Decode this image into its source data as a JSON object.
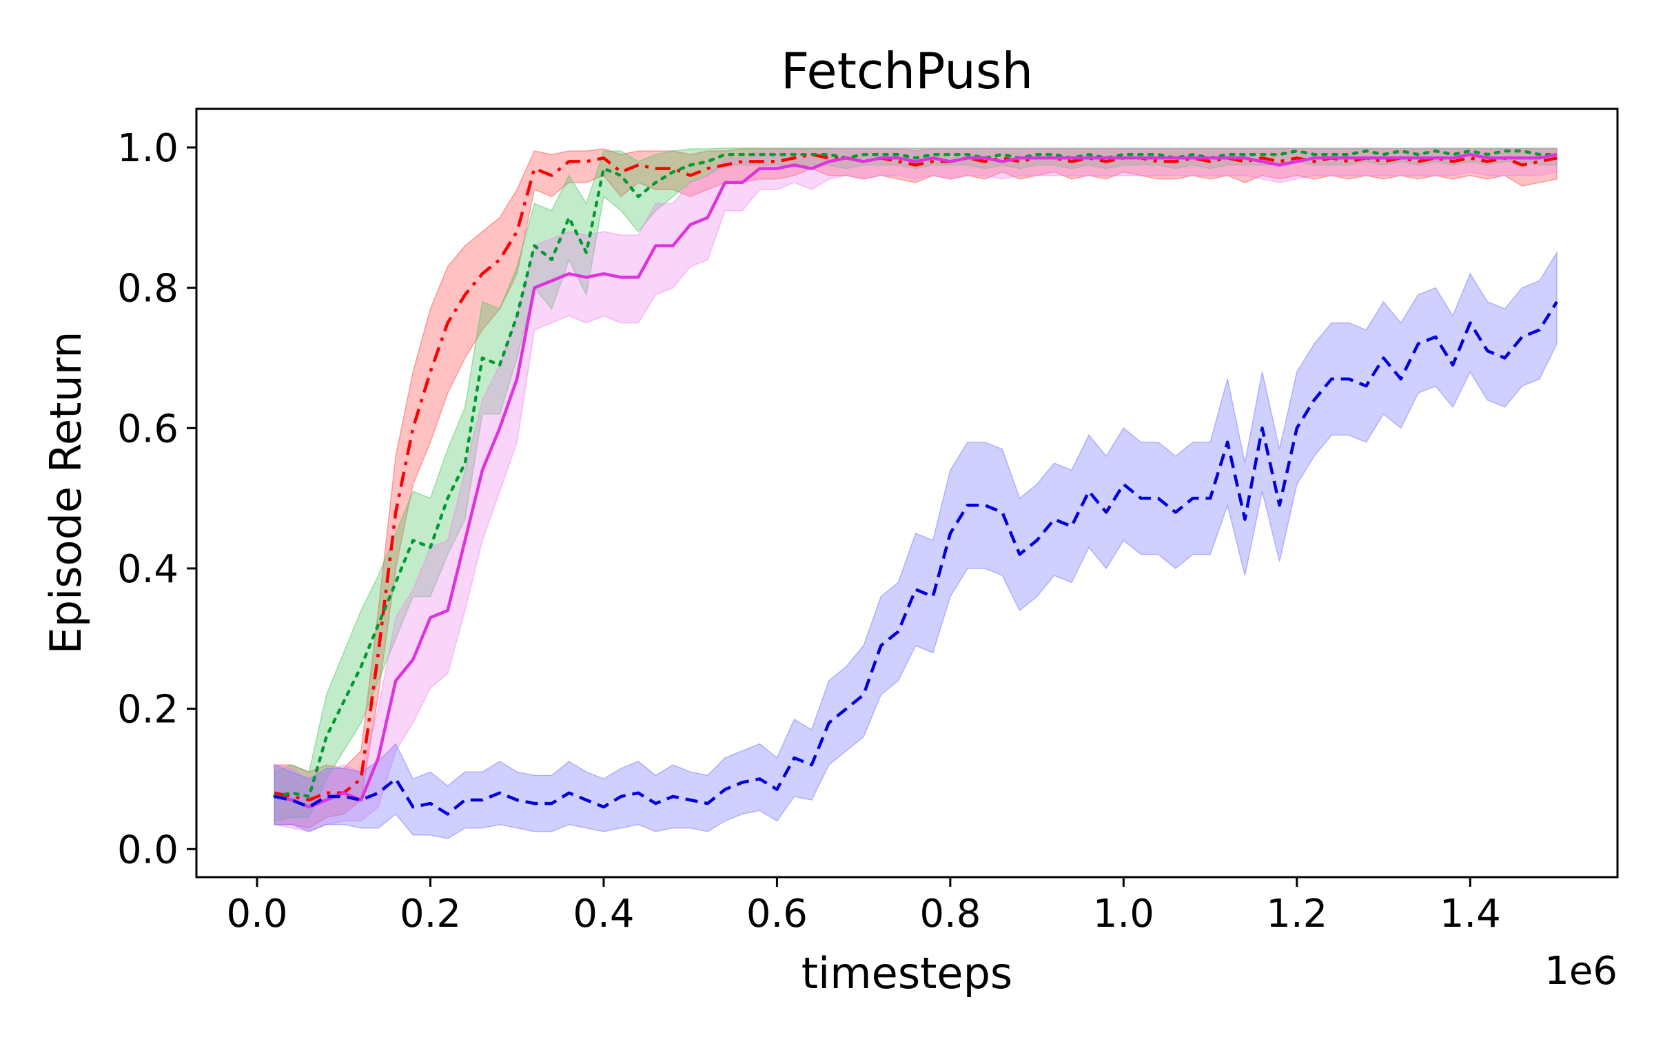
{
  "chart_data": {
    "type": "line",
    "title": "FetchPush",
    "xlabel": "timesteps",
    "ylabel": "Episode Return",
    "x_multiplier_label": "1e6",
    "xlim": [
      -0.07,
      1.57
    ],
    "ylim": [
      -0.04,
      1.055
    ],
    "xticks": [
      0.0,
      0.2,
      0.4,
      0.6,
      0.8,
      1.0,
      1.2,
      1.4
    ],
    "xtick_labels": [
      "0.0",
      "0.2",
      "0.4",
      "0.6",
      "0.8",
      "1.0",
      "1.2",
      "1.4"
    ],
    "yticks": [
      0.0,
      0.2,
      0.4,
      0.6,
      0.8,
      1.0
    ],
    "ytick_labels": [
      "0.0",
      "0.2",
      "0.4",
      "0.6",
      "0.8",
      "1.0"
    ],
    "grid": false,
    "legend": "none",
    "x": [
      0.02,
      0.04,
      0.06,
      0.08,
      0.1,
      0.12,
      0.14,
      0.16,
      0.18,
      0.2,
      0.22,
      0.24,
      0.26,
      0.28,
      0.3,
      0.32,
      0.34,
      0.36,
      0.38,
      0.4,
      0.42,
      0.44,
      0.46,
      0.48,
      0.5,
      0.52,
      0.54,
      0.56,
      0.58,
      0.6,
      0.62,
      0.64,
      0.66,
      0.68,
      0.7,
      0.72,
      0.74,
      0.76,
      0.78,
      0.8,
      0.82,
      0.84,
      0.86,
      0.88,
      0.9,
      0.92,
      0.94,
      0.96,
      0.98,
      1.0,
      1.02,
      1.04,
      1.06,
      1.08,
      1.1,
      1.12,
      1.14,
      1.16,
      1.18,
      1.2,
      1.22,
      1.24,
      1.26,
      1.28,
      1.3,
      1.32,
      1.34,
      1.36,
      1.38,
      1.4,
      1.42,
      1.44,
      1.46,
      1.48,
      1.5
    ],
    "series": [
      {
        "color": "#ff0000",
        "band_color": "#ff4d4d",
        "dash": "dashdot",
        "values": [
          0.08,
          0.075,
          0.07,
          0.08,
          0.08,
          0.1,
          0.28,
          0.48,
          0.6,
          0.68,
          0.75,
          0.79,
          0.82,
          0.84,
          0.88,
          0.97,
          0.96,
          0.98,
          0.98,
          0.985,
          0.965,
          0.975,
          0.97,
          0.97,
          0.96,
          0.97,
          0.975,
          0.98,
          0.98,
          0.98,
          0.985,
          0.99,
          0.985,
          0.985,
          0.98,
          0.985,
          0.98,
          0.975,
          0.98,
          0.98,
          0.985,
          0.98,
          0.985,
          0.98,
          0.985,
          0.985,
          0.98,
          0.985,
          0.98,
          0.985,
          0.985,
          0.98,
          0.98,
          0.985,
          0.98,
          0.985,
          0.98,
          0.985,
          0.98,
          0.985,
          0.98,
          0.985,
          0.98,
          0.985,
          0.98,
          0.985,
          0.98,
          0.985,
          0.98,
          0.985,
          0.98,
          0.985,
          0.975,
          0.98,
          0.985
        ],
        "lower": [
          0.035,
          0.035,
          0.03,
          0.045,
          0.05,
          0.07,
          0.22,
          0.4,
          0.52,
          0.58,
          0.65,
          0.7,
          0.74,
          0.77,
          0.82,
          0.94,
          0.93,
          0.95,
          0.95,
          0.96,
          0.93,
          0.95,
          0.94,
          0.94,
          0.93,
          0.94,
          0.95,
          0.95,
          0.955,
          0.955,
          0.96,
          0.97,
          0.96,
          0.96,
          0.955,
          0.96,
          0.955,
          0.95,
          0.96,
          0.955,
          0.96,
          0.955,
          0.965,
          0.955,
          0.96,
          0.965,
          0.955,
          0.96,
          0.955,
          0.965,
          0.96,
          0.955,
          0.955,
          0.96,
          0.955,
          0.96,
          0.95,
          0.96,
          0.955,
          0.96,
          0.955,
          0.96,
          0.955,
          0.96,
          0.955,
          0.96,
          0.955,
          0.96,
          0.955,
          0.96,
          0.955,
          0.96,
          0.945,
          0.95,
          0.955
        ],
        "upper": [
          0.12,
          0.12,
          0.11,
          0.12,
          0.115,
          0.14,
          0.34,
          0.56,
          0.68,
          0.77,
          0.83,
          0.86,
          0.88,
          0.9,
          0.94,
          0.995,
          0.99,
          0.995,
          0.995,
          0.998,
          0.99,
          0.995,
          0.995,
          0.995,
          0.99,
          0.995,
          0.995,
          0.998,
          0.998,
          0.998,
          0.998,
          0.998,
          0.998,
          0.998,
          0.998,
          0.998,
          0.998,
          0.995,
          0.998,
          0.998,
          0.998,
          0.998,
          0.998,
          0.998,
          0.998,
          0.998,
          0.998,
          0.998,
          0.998,
          0.998,
          0.998,
          0.998,
          0.998,
          0.998,
          0.998,
          0.998,
          0.998,
          0.998,
          0.998,
          0.998,
          0.998,
          0.998,
          0.998,
          0.998,
          0.998,
          0.998,
          0.998,
          0.998,
          0.998,
          0.998,
          0.998,
          0.998,
          0.998,
          0.998,
          0.998
        ]
      },
      {
        "color": "#009933",
        "band_color": "#4fc766",
        "dash": "dotted",
        "values": [
          0.075,
          0.08,
          0.075,
          0.16,
          0.21,
          0.26,
          0.32,
          0.38,
          0.44,
          0.43,
          0.5,
          0.55,
          0.7,
          0.69,
          0.76,
          0.86,
          0.84,
          0.9,
          0.85,
          0.97,
          0.96,
          0.93,
          0.95,
          0.965,
          0.975,
          0.98,
          0.99,
          0.99,
          0.99,
          0.99,
          0.99,
          0.99,
          0.99,
          0.985,
          0.99,
          0.99,
          0.99,
          0.985,
          0.99,
          0.99,
          0.99,
          0.985,
          0.99,
          0.985,
          0.99,
          0.99,
          0.985,
          0.99,
          0.985,
          0.99,
          0.99,
          0.99,
          0.985,
          0.99,
          0.985,
          0.99,
          0.99,
          0.99,
          0.99,
          0.995,
          0.99,
          0.99,
          0.99,
          0.995,
          0.99,
          0.995,
          0.99,
          0.995,
          0.99,
          0.995,
          0.99,
          0.995,
          0.995,
          0.99,
          0.99
        ],
        "lower": [
          0.04,
          0.045,
          0.045,
          0.1,
          0.14,
          0.18,
          0.24,
          0.3,
          0.36,
          0.36,
          0.42,
          0.47,
          0.62,
          0.62,
          0.7,
          0.8,
          0.77,
          0.84,
          0.79,
          0.93,
          0.91,
          0.88,
          0.91,
          0.93,
          0.95,
          0.96,
          0.975,
          0.975,
          0.975,
          0.975,
          0.975,
          0.975,
          0.975,
          0.97,
          0.975,
          0.975,
          0.975,
          0.97,
          0.975,
          0.975,
          0.975,
          0.97,
          0.975,
          0.97,
          0.975,
          0.975,
          0.97,
          0.975,
          0.97,
          0.975,
          0.975,
          0.975,
          0.97,
          0.975,
          0.97,
          0.975,
          0.975,
          0.975,
          0.975,
          0.98,
          0.975,
          0.975,
          0.975,
          0.98,
          0.975,
          0.98,
          0.975,
          0.98,
          0.975,
          0.98,
          0.975,
          0.98,
          0.98,
          0.975,
          0.975
        ],
        "upper": [
          0.11,
          0.12,
          0.11,
          0.22,
          0.28,
          0.34,
          0.39,
          0.45,
          0.51,
          0.5,
          0.57,
          0.63,
          0.78,
          0.77,
          0.83,
          0.92,
          0.91,
          0.96,
          0.92,
          0.995,
          0.995,
          0.98,
          0.99,
          0.995,
          0.998,
          0.998,
          0.999,
          0.999,
          0.999,
          0.999,
          0.999,
          0.999,
          0.999,
          0.999,
          0.999,
          0.999,
          0.999,
          0.999,
          0.999,
          0.999,
          0.999,
          0.999,
          0.999,
          0.999,
          0.999,
          0.999,
          0.999,
          0.999,
          0.999,
          0.999,
          0.999,
          0.999,
          0.999,
          0.999,
          0.999,
          0.999,
          0.999,
          0.999,
          0.999,
          0.999,
          0.999,
          0.999,
          0.999,
          0.999,
          0.999,
          0.999,
          0.999,
          0.999,
          0.999,
          0.999,
          0.999,
          0.999,
          0.999,
          0.999,
          0.999
        ]
      },
      {
        "color": "#dd33dd",
        "band_color": "#ee88ee",
        "dash": "solid",
        "values": [
          0.075,
          0.07,
          0.06,
          0.07,
          0.08,
          0.07,
          0.13,
          0.24,
          0.27,
          0.33,
          0.34,
          0.44,
          0.54,
          0.6,
          0.67,
          0.8,
          0.81,
          0.82,
          0.815,
          0.82,
          0.815,
          0.815,
          0.86,
          0.86,
          0.89,
          0.9,
          0.95,
          0.95,
          0.97,
          0.97,
          0.975,
          0.97,
          0.98,
          0.985,
          0.98,
          0.985,
          0.985,
          0.98,
          0.985,
          0.98,
          0.985,
          0.985,
          0.98,
          0.985,
          0.985,
          0.985,
          0.985,
          0.985,
          0.985,
          0.985,
          0.985,
          0.985,
          0.985,
          0.985,
          0.985,
          0.985,
          0.985,
          0.98,
          0.975,
          0.98,
          0.985,
          0.985,
          0.985,
          0.985,
          0.985,
          0.985,
          0.985,
          0.985,
          0.985,
          0.99,
          0.985,
          0.985,
          0.985,
          0.985,
          0.99
        ],
        "lower": [
          0.035,
          0.03,
          0.025,
          0.035,
          0.04,
          0.04,
          0.06,
          0.14,
          0.18,
          0.23,
          0.25,
          0.34,
          0.44,
          0.51,
          0.58,
          0.74,
          0.75,
          0.76,
          0.75,
          0.76,
          0.75,
          0.75,
          0.79,
          0.8,
          0.83,
          0.84,
          0.91,
          0.91,
          0.94,
          0.94,
          0.95,
          0.94,
          0.955,
          0.96,
          0.955,
          0.96,
          0.96,
          0.955,
          0.96,
          0.955,
          0.96,
          0.96,
          0.955,
          0.96,
          0.96,
          0.96,
          0.96,
          0.96,
          0.96,
          0.96,
          0.96,
          0.96,
          0.96,
          0.96,
          0.96,
          0.96,
          0.96,
          0.955,
          0.95,
          0.955,
          0.96,
          0.96,
          0.96,
          0.96,
          0.96,
          0.96,
          0.96,
          0.96,
          0.96,
          0.965,
          0.96,
          0.96,
          0.96,
          0.96,
          0.965
        ],
        "upper": [
          0.12,
          0.115,
          0.1,
          0.11,
          0.12,
          0.11,
          0.2,
          0.33,
          0.37,
          0.43,
          0.44,
          0.54,
          0.64,
          0.69,
          0.76,
          0.86,
          0.87,
          0.88,
          0.875,
          0.88,
          0.875,
          0.875,
          0.92,
          0.92,
          0.95,
          0.96,
          0.985,
          0.985,
          0.995,
          0.995,
          0.998,
          0.995,
          0.998,
          0.998,
          0.998,
          0.998,
          0.998,
          0.998,
          0.998,
          0.998,
          0.998,
          0.998,
          0.998,
          0.998,
          0.998,
          0.998,
          0.998,
          0.998,
          0.998,
          0.998,
          0.998,
          0.998,
          0.998,
          0.998,
          0.998,
          0.998,
          0.998,
          0.998,
          0.998,
          0.998,
          0.998,
          0.998,
          0.998,
          0.998,
          0.998,
          0.998,
          0.998,
          0.998,
          0.998,
          0.998,
          0.998,
          0.998,
          0.998,
          0.998,
          0.998
        ]
      },
      {
        "color": "#0000dd",
        "band_color": "#7777ff",
        "dash": "dashed",
        "values": [
          0.075,
          0.07,
          0.06,
          0.075,
          0.075,
          0.07,
          0.08,
          0.1,
          0.06,
          0.065,
          0.05,
          0.07,
          0.07,
          0.08,
          0.07,
          0.065,
          0.065,
          0.08,
          0.07,
          0.06,
          0.075,
          0.08,
          0.065,
          0.075,
          0.07,
          0.065,
          0.085,
          0.095,
          0.1,
          0.085,
          0.13,
          0.12,
          0.18,
          0.2,
          0.22,
          0.29,
          0.31,
          0.37,
          0.36,
          0.45,
          0.49,
          0.49,
          0.48,
          0.42,
          0.44,
          0.47,
          0.46,
          0.51,
          0.48,
          0.52,
          0.5,
          0.5,
          0.48,
          0.5,
          0.5,
          0.58,
          0.47,
          0.6,
          0.49,
          0.6,
          0.64,
          0.67,
          0.67,
          0.66,
          0.7,
          0.67,
          0.72,
          0.73,
          0.69,
          0.75,
          0.71,
          0.7,
          0.73,
          0.74,
          0.78
        ],
        "lower": [
          0.035,
          0.035,
          0.025,
          0.035,
          0.035,
          0.03,
          0.03,
          0.05,
          0.02,
          0.02,
          0.015,
          0.03,
          0.03,
          0.035,
          0.03,
          0.025,
          0.025,
          0.035,
          0.03,
          0.025,
          0.03,
          0.035,
          0.025,
          0.03,
          0.03,
          0.025,
          0.04,
          0.05,
          0.055,
          0.04,
          0.075,
          0.07,
          0.12,
          0.14,
          0.16,
          0.22,
          0.24,
          0.29,
          0.28,
          0.36,
          0.4,
          0.4,
          0.39,
          0.34,
          0.36,
          0.39,
          0.38,
          0.43,
          0.4,
          0.44,
          0.42,
          0.42,
          0.4,
          0.42,
          0.42,
          0.49,
          0.39,
          0.51,
          0.41,
          0.52,
          0.56,
          0.59,
          0.59,
          0.58,
          0.62,
          0.6,
          0.65,
          0.66,
          0.63,
          0.68,
          0.64,
          0.63,
          0.66,
          0.67,
          0.72
        ],
        "upper": [
          0.12,
          0.11,
          0.1,
          0.115,
          0.115,
          0.11,
          0.125,
          0.15,
          0.1,
          0.11,
          0.09,
          0.11,
          0.11,
          0.125,
          0.11,
          0.105,
          0.105,
          0.125,
          0.11,
          0.1,
          0.115,
          0.125,
          0.105,
          0.12,
          0.11,
          0.105,
          0.13,
          0.14,
          0.15,
          0.13,
          0.185,
          0.17,
          0.24,
          0.26,
          0.29,
          0.36,
          0.38,
          0.45,
          0.44,
          0.54,
          0.58,
          0.58,
          0.57,
          0.5,
          0.52,
          0.55,
          0.54,
          0.59,
          0.56,
          0.6,
          0.58,
          0.58,
          0.56,
          0.58,
          0.58,
          0.67,
          0.55,
          0.68,
          0.57,
          0.68,
          0.72,
          0.75,
          0.75,
          0.74,
          0.78,
          0.75,
          0.79,
          0.8,
          0.76,
          0.82,
          0.78,
          0.77,
          0.8,
          0.81,
          0.85
        ]
      }
    ]
  }
}
